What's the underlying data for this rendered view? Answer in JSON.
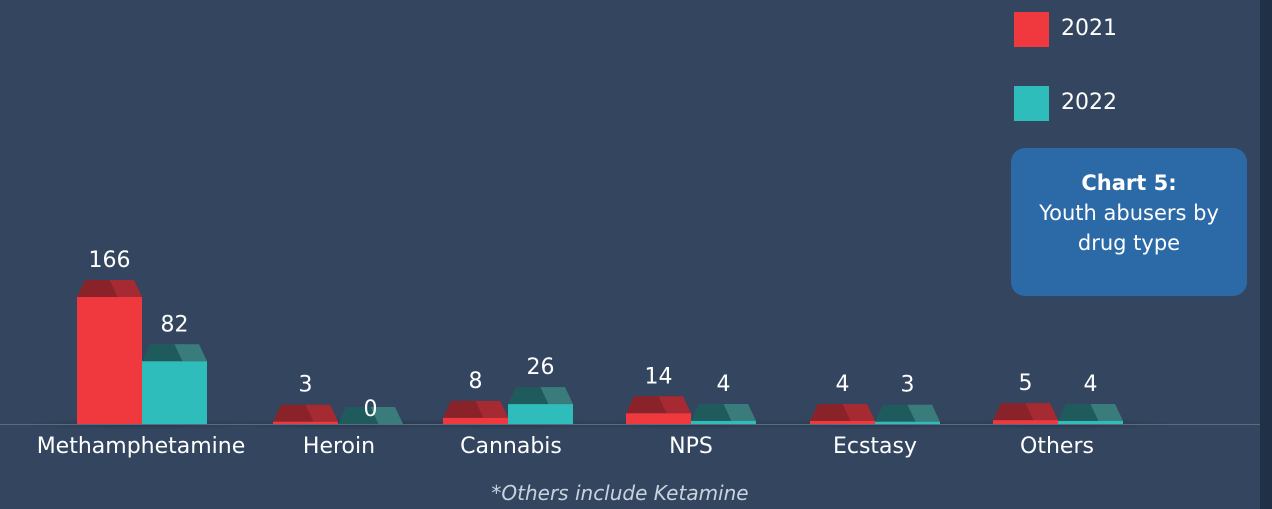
{
  "chart_data": {
    "type": "bar",
    "categories": [
      "Methamphetamine",
      "Heroin",
      "Cannabis",
      "NPS",
      "Ecstasy",
      "Others"
    ],
    "series": [
      {
        "name": "2021",
        "values": [
          166,
          3,
          8,
          14,
          4,
          5
        ]
      },
      {
        "name": "2022",
        "values": [
          82,
          0,
          26,
          4,
          3,
          4
        ]
      }
    ],
    "ylim": [
      0,
      166
    ],
    "grid": false,
    "legend_position": "top-right",
    "colors": {
      "2021": "#f0383f",
      "2022": "#2ebdbb"
    }
  },
  "caption": {
    "title": "Chart 5:",
    "text": "Youth abusers by drug type"
  },
  "footnote": "*Others include Ketamine"
}
